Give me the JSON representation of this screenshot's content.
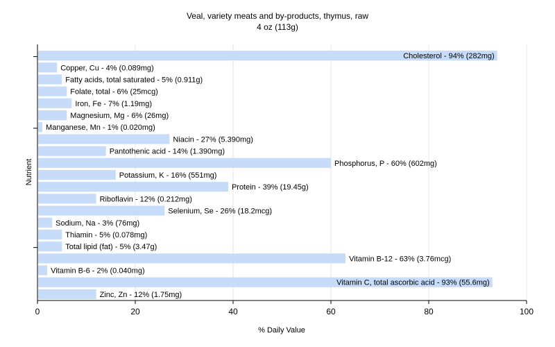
{
  "chart_data": {
    "type": "bar",
    "orientation": "horizontal",
    "title": "Veal, variety meats and by-products, thymus, raw",
    "subtitle": "4 oz (113g)",
    "xlabel": "% Daily Value",
    "ylabel": "Nutrient",
    "xlim": [
      0,
      100
    ],
    "xticks": [
      0,
      20,
      40,
      60,
      80,
      100
    ],
    "grid": true,
    "bar_color": "#c6dcf8",
    "grid_color": "#e6e6e6",
    "categories": [
      "Cholesterol",
      "Copper, Cu",
      "Fatty acids, total saturated",
      "Folate, total",
      "Iron, Fe",
      "Magnesium, Mg",
      "Manganese, Mn",
      "Niacin",
      "Pantothenic acid",
      "Phosphorus, P",
      "Potassium, K",
      "Protein",
      "Riboflavin",
      "Selenium, Se",
      "Sodium, Na",
      "Thiamin",
      "Total lipid (fat)",
      "Vitamin B-12",
      "Vitamin B-6",
      "Vitamin C, total ascorbic acid",
      "Zinc, Zn"
    ],
    "values": [
      94,
      4,
      5,
      6,
      7,
      6,
      1,
      27,
      14,
      60,
      16,
      39,
      12,
      26,
      3,
      5,
      5,
      63,
      2,
      93,
      12
    ],
    "labels": [
      "Cholesterol - 94% (282mg)",
      "Copper, Cu - 4% (0.089mg)",
      "Fatty acids, total saturated - 5% (0.911g)",
      "Folate, total - 6% (25mcg)",
      "Iron, Fe - 7% (1.19mg)",
      "Magnesium, Mg - 6% (26mg)",
      "Manganese, Mn - 1% (0.020mg)",
      "Niacin - 27% (5.390mg)",
      "Pantothenic acid - 14% (1.390mg)",
      "Phosphorus, P - 60% (602mg)",
      "Potassium, K - 16% (551mg)",
      "Protein - 39% (19.45g)",
      "Riboflavin - 12% (0.212mg)",
      "Selenium, Se - 26% (18.2mcg)",
      "Sodium, Na - 3% (76mg)",
      "Thiamin - 5% (0.078mg)",
      "Total lipid (fat) - 5% (3.47g)",
      "Vitamin B-12 - 63% (3.76mcg)",
      "Vitamin B-6 - 2% (0.040mg)",
      "Vitamin C, total ascorbic acid - 93% (55.6mg)",
      "Zinc, Zn - 12% (1.75mg)"
    ]
  }
}
